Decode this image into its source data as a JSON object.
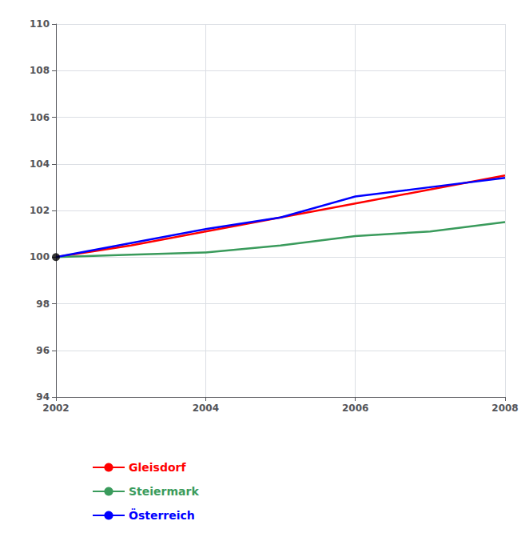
{
  "chart_data": {
    "type": "line",
    "x": [
      2002,
      2003,
      2004,
      2005,
      2006,
      2007,
      2008
    ],
    "series": [
      {
        "name": "Gleisdorf",
        "color": "#ff0000",
        "values": [
          100.0,
          100.5,
          101.1,
          101.7,
          102.3,
          102.9,
          103.5
        ]
      },
      {
        "name": "Steiermark",
        "color": "#3a9b5c",
        "values": [
          100.0,
          100.1,
          100.2,
          100.5,
          100.9,
          101.1,
          101.5
        ]
      },
      {
        "name": "Österreich",
        "color": "#0000ff",
        "values": [
          100.0,
          100.6,
          101.2,
          101.7,
          102.6,
          103.0,
          103.4
        ]
      }
    ],
    "points": [
      {
        "x": 2002,
        "y": 100,
        "color": "#000000",
        "marker": "circle"
      }
    ],
    "xlim": [
      2002,
      2008
    ],
    "xticks": [
      2002,
      2004,
      2006,
      2008
    ],
    "ylim": [
      94,
      110
    ],
    "yticks": [
      94,
      96,
      98,
      100,
      102,
      104,
      106,
      108,
      110
    ],
    "grid": true,
    "legend": "bottom"
  }
}
